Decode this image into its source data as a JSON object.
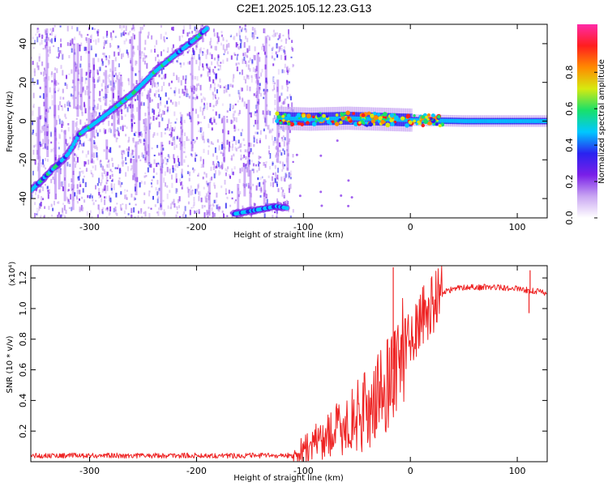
{
  "page": {
    "title": "C2E1.2025.105.12.23.G13"
  },
  "chart_data": [
    {
      "type": "heatmap",
      "name": "spectrogram",
      "xlabel": "Height of straight line (km)",
      "ylabel": "Frequency (Hz)",
      "xlim": [
        -355,
        128
      ],
      "ylim": [
        -50,
        50
      ],
      "xticks": [
        -300,
        -200,
        -100,
        0,
        100
      ],
      "yticks": [
        -40,
        -20,
        0,
        20,
        40
      ],
      "colorbar": {
        "label": "Normalized spectral amplitude",
        "range": [
          0,
          1
        ],
        "ticks": [
          "0.0",
          "0.2",
          "0.4",
          "0.6",
          "0.8"
        ],
        "colors": [
          "#ffffff",
          "#c9a6f2",
          "#7a1fe8",
          "#2a22f0",
          "#00c8ff",
          "#18e06a",
          "#d6ea10",
          "#ff8a00",
          "#ff1e1e",
          "#ff2aa8"
        ]
      },
      "tracks": [
        {
          "name": "track-a",
          "x": [
            -355,
            -320,
            -310,
            -290,
            -260,
            -240,
            -225,
            -200,
            -190
          ],
          "y": [
            -36,
            -17,
            -7,
            1,
            14,
            25,
            32,
            43,
            48
          ],
          "level": 0.45
        },
        {
          "name": "track-b",
          "x": [
            -165,
            -145,
            -125,
            -115
          ],
          "y": [
            -48,
            -46,
            -44,
            -45
          ],
          "level": 0.4
        },
        {
          "name": "carrier-band",
          "x": [
            -125,
            -95,
            -60,
            -30,
            0,
            50,
            100,
            128
          ],
          "y": [
            1.5,
            1,
            1.5,
            1,
            0.5,
            0,
            0,
            0
          ],
          "level": 0.55
        }
      ]
    },
    {
      "type": "line",
      "name": "snr",
      "xlabel": "Height of straight line (km)",
      "ylabel": "SNR (10 * v/v)",
      "multiplier": "(x10⁴)",
      "xlim": [
        -355,
        128
      ],
      "ylim": [
        0,
        1.28
      ],
      "xticks": [
        -300,
        -200,
        -100,
        0,
        100
      ],
      "yticks": [
        0.2,
        0.4,
        0.6,
        0.8,
        1.0,
        1.2
      ],
      "color": "#ee2222",
      "envelope": {
        "x": [
          -355,
          -110,
          -100,
          -80,
          -60,
          -40,
          -25,
          -15,
          0,
          10,
          20,
          30,
          50,
          80,
          100,
          110,
          128
        ],
        "y": [
          0.04,
          0.04,
          0.08,
          0.16,
          0.24,
          0.34,
          0.46,
          0.62,
          0.82,
          0.92,
          1.02,
          1.11,
          1.14,
          1.14,
          1.13,
          1.12,
          1.1
        ]
      },
      "spikes": [
        {
          "x": -16,
          "y": 1.27
        },
        {
          "x": -15,
          "y": 0.85
        },
        {
          "x": 112,
          "y": 1.25
        },
        {
          "x": 111,
          "y": 0.97
        }
      ]
    }
  ]
}
